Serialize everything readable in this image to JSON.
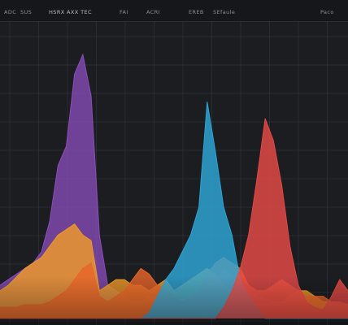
{
  "toolbar": {
    "items": [
      {
        "label": "ADC"
      },
      {
        "label": "SUS"
      },
      {
        "label": "HSRX AXX TEC"
      },
      {
        "label": "FAI"
      },
      {
        "label": "ACRI"
      },
      {
        "label": "EREB"
      },
      {
        "label": "SEfaule"
      },
      {
        "label": "Paco"
      }
    ]
  },
  "colors": {
    "background": "#1b1d21",
    "grid": "#34383e",
    "purple": "#8e4fbf",
    "orange": "#e8652a",
    "amber": "#f09a28",
    "blue": "#2ea7d8",
    "red": "#e84a47",
    "teal": "#2aa39a"
  },
  "chart_data": {
    "type": "area",
    "title": "",
    "xlabel": "",
    "ylabel": "",
    "grid": true,
    "legend": "none",
    "x": [
      0,
      1,
      2,
      3,
      4,
      5,
      6,
      7,
      8,
      9,
      10,
      11,
      12,
      13,
      14,
      15,
      16,
      17,
      18,
      19,
      20,
      21,
      22,
      23,
      24,
      25,
      26,
      27,
      28,
      29,
      30,
      31,
      32,
      33,
      34,
      35,
      36,
      37,
      38,
      39,
      40,
      41,
      42
    ],
    "series": [
      {
        "values": [
          12,
          14,
          16,
          18,
          20,
          24,
          35,
          55,
          62,
          88,
          95,
          80,
          30,
          12,
          10,
          8,
          6,
          6,
          8,
          7,
          6,
          6,
          7,
          8,
          10,
          12,
          14,
          18,
          15,
          12,
          10,
          8,
          7,
          6,
          6,
          6,
          6,
          6,
          5,
          5,
          5,
          5,
          5
        ],
        "color": "#8e4fbf"
      },
      {
        "values": [
          10,
          12,
          15,
          18,
          20,
          22,
          26,
          30,
          32,
          34,
          30,
          28,
          10,
          12,
          14,
          14,
          12,
          12,
          10,
          12,
          14,
          10,
          12,
          14,
          16,
          18,
          16,
          12,
          10,
          8,
          6,
          5,
          5,
          6,
          6,
          8,
          10,
          10,
          8,
          6,
          6,
          5,
          5
        ],
        "color": "#f09a28"
      },
      {
        "values": [
          4,
          4,
          4,
          5,
          5,
          5,
          6,
          8,
          10,
          14,
          18,
          20,
          8,
          6,
          8,
          10,
          14,
          18,
          16,
          12,
          10,
          8,
          6,
          8,
          10,
          16,
          20,
          22,
          20,
          18,
          12,
          10,
          10,
          12,
          14,
          12,
          10,
          8,
          8,
          8,
          6,
          6,
          5
        ],
        "color": "#e8652a"
      },
      {
        "values": [
          0,
          0,
          0,
          0,
          0,
          0,
          0,
          0,
          0,
          0,
          0,
          0,
          0,
          0,
          0,
          0,
          0,
          0,
          2,
          8,
          14,
          18,
          24,
          30,
          40,
          78,
          60,
          40,
          30,
          14,
          8,
          4,
          0,
          0,
          0,
          0,
          0,
          0,
          0,
          0,
          0,
          0,
          0
        ],
        "color": "#2ea7d8"
      },
      {
        "values": [
          0,
          0,
          0,
          0,
          0,
          0,
          0,
          0,
          0,
          0,
          0,
          0,
          0,
          0,
          0,
          0,
          0,
          0,
          0,
          0,
          0,
          0,
          0,
          0,
          0,
          0,
          0,
          4,
          10,
          18,
          30,
          50,
          72,
          64,
          48,
          26,
          12,
          6,
          4,
          3,
          8,
          14,
          10
        ],
        "color": "#e84a47"
      }
    ]
  }
}
